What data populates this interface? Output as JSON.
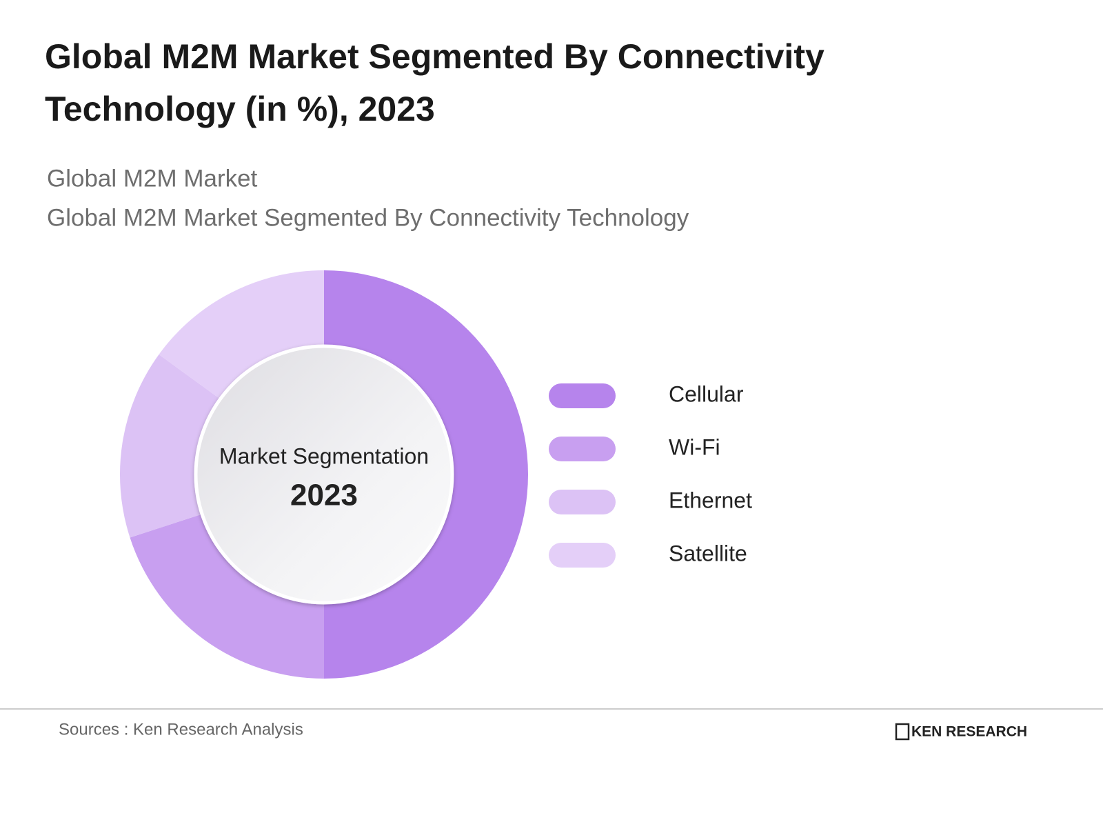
{
  "chart_data": {
    "type": "donut",
    "title": [
      "Global M2M Market Segmented By Connectivity",
      "Technology (in %), 2023"
    ],
    "subtitle": [
      "Global M2M Market",
      "Global M2M Market Segmented By Connectivity Technology"
    ],
    "center_label": "Market Segmentation",
    "center_year": "2023",
    "categories": [
      "Cellular",
      "Wi-Fi",
      "Ethernet",
      "Satellite"
    ],
    "values": [
      50,
      20,
      15,
      15
    ],
    "colors": [
      "#b684ec",
      "#c89ff0",
      "#dcc2f5",
      "#e4cff8"
    ],
    "source": "Sources : Ken Research Analysis",
    "logo": "KEN RESEARCH"
  }
}
